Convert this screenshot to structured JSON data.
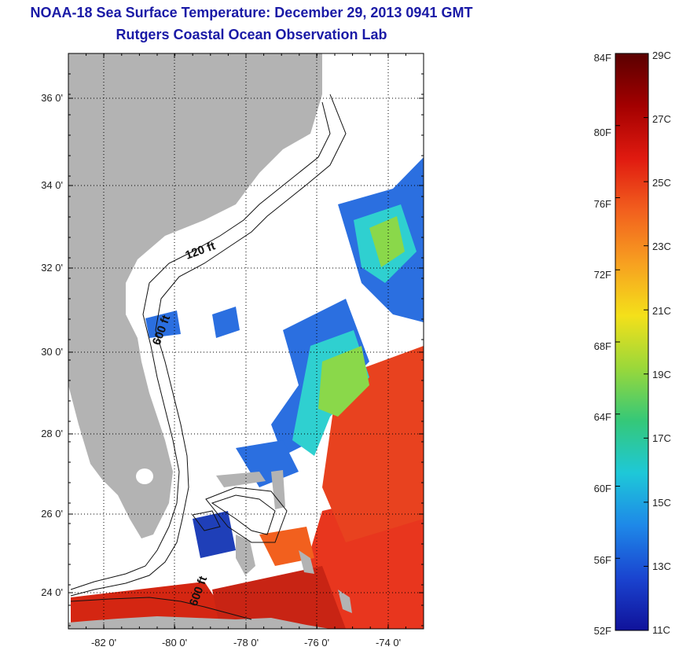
{
  "title": "NOAA-18 Sea Surface Temperature:  December 29, 2013 0941 GMT",
  "subtitle": "Rutgers Coastal Ocean Observation Lab",
  "map": {
    "lon_ticks": [
      "-82 0'",
      "-80 0'",
      "-78 0'",
      "-76 0'",
      "-74 0'"
    ],
    "lat_ticks": [
      "36 0'",
      "34 0'",
      "32 0'",
      "30 0'",
      "28 0'",
      "26 0'",
      "24 0'"
    ],
    "contour_labels": [
      "120 ft",
      "600 ft",
      "600 ft"
    ],
    "colors": {
      "land": "#b3b3b3",
      "cloud_mask": "#ffffff",
      "warm": "#e8361e",
      "hot": "#c41d12",
      "cool": "#2b6fe0",
      "cold": "#1f3fb8",
      "mild": "#2fd0d0",
      "green": "#8ad84a"
    }
  },
  "colorbar": {
    "fahrenheit": [
      "84F",
      "80F",
      "76F",
      "72F",
      "68F",
      "64F",
      "60F",
      "56F",
      "52F"
    ],
    "celsius": [
      "29C",
      "27C",
      "25C",
      "23C",
      "21C",
      "19C",
      "17C",
      "15C",
      "13C",
      "11C"
    ],
    "colors": [
      "#5a0000",
      "#a30000",
      "#e01a10",
      "#f2601e",
      "#f7a020",
      "#f4e01a",
      "#9ad83a",
      "#35c878",
      "#1ec8d8",
      "#1e88e8",
      "#1a44d0",
      "#10129a"
    ]
  }
}
